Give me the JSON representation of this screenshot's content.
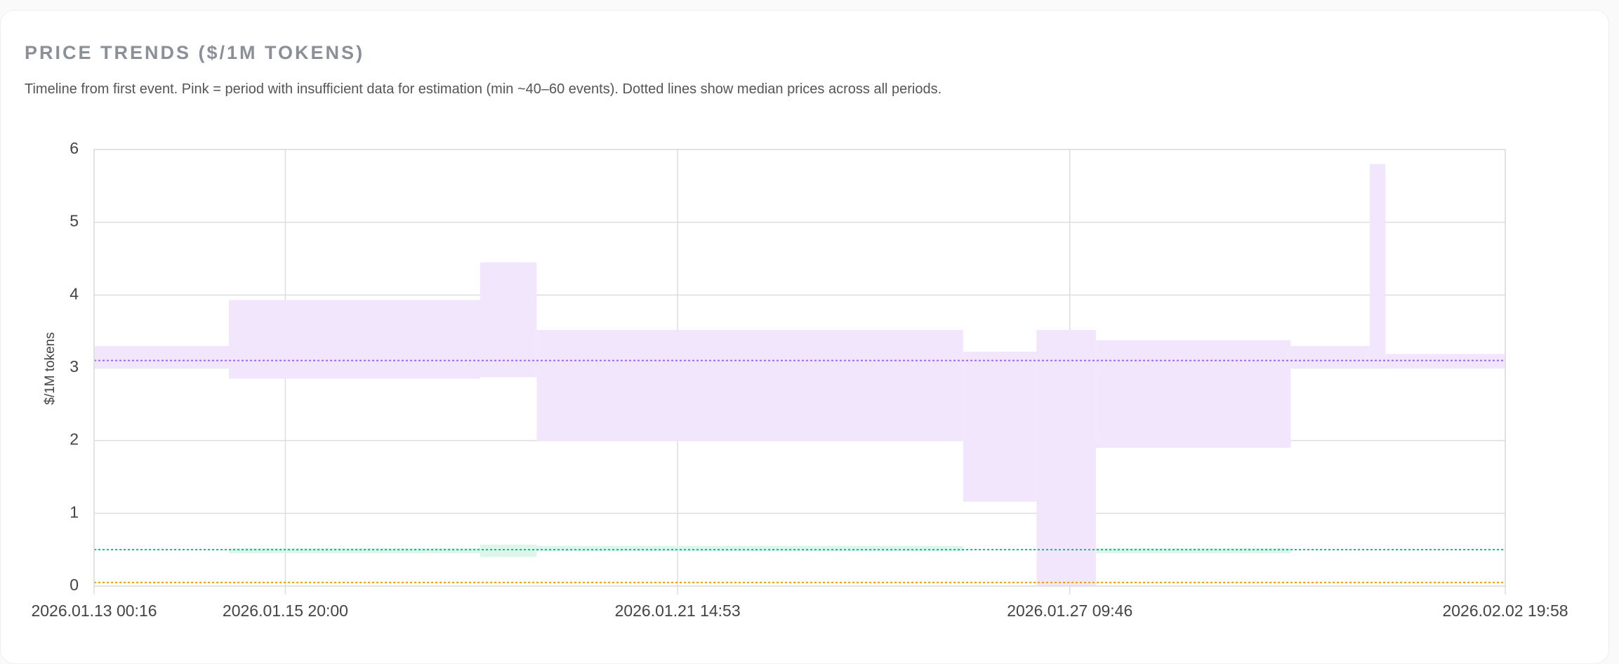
{
  "header": {
    "title": "PRICE TRENDS ($/1M TOKENS)",
    "subtitle": "Timeline from first event. Pink = period with insufficient data for estimation (min ~40–60 events). Dotted lines show median prices across all periods."
  },
  "chart_data": {
    "type": "range-band",
    "y_label": "$/1M tokens",
    "x": [
      "2026.01.13 00:16",
      "2026.01.15 00:00",
      "2026.01.18 17:00",
      "2026.01.19 13:00",
      "2026.01.25 20:00",
      "2026.01.26 22:00",
      "2026.01.27 19:00",
      "2026.01.30 16:00",
      "2026.01.31 20:00",
      "2026.02.01 01:30",
      "2026.02.02 19:58"
    ],
    "xlim": [
      "2026.01.13 00:16",
      "2026.02.02 19:58"
    ],
    "xticks": [
      "2026.01.13 00:16",
      "2026.01.15 20:00",
      "2026.01.21 14:53",
      "2026.01.27 09:46",
      "2026.02.02 19:58"
    ],
    "ylim": [
      0,
      6
    ],
    "yticks": [
      0,
      1,
      2,
      3,
      4,
      5,
      6
    ],
    "grid": true,
    "series": [
      {
        "color": "#f2e6fd",
        "low": [
          3.0,
          2.85,
          2.87,
          1.99,
          1.16,
          0,
          1.9,
          3.0,
          3.0,
          2.99
        ],
        "high": [
          3.3,
          3.93,
          4.45,
          3.52,
          3.22,
          3.52,
          3.38,
          3.3,
          5.8,
          3.19
        ]
      },
      {
        "color": "#dcf6ea",
        "low": [
          null,
          0.45,
          0.4,
          0.48,
          null,
          null,
          0.45,
          null,
          null,
          null
        ],
        "high": [
          null,
          0.52,
          0.57,
          0.55,
          null,
          null,
          0.52,
          null,
          null,
          null
        ]
      }
    ],
    "medians": [
      {
        "value": 3.1,
        "color": "#9b6ce0"
      },
      {
        "value": 0.5,
        "color": "#22b09a"
      },
      {
        "value": 0.05,
        "color": "#e0a020"
      }
    ]
  }
}
